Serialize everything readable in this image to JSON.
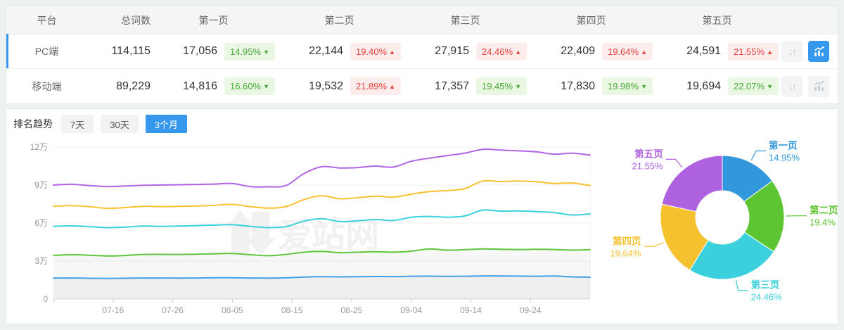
{
  "table": {
    "headers": [
      "平台",
      "总词数",
      "第一页",
      "第二页",
      "第三页",
      "第四页",
      "第五页"
    ],
    "rows": [
      {
        "platform": "PC端",
        "total": "114,115",
        "selected": true,
        "pages": [
          {
            "value": "17,056",
            "pct": "14.95%",
            "trend": "down",
            "tone": "green"
          },
          {
            "value": "22,144",
            "pct": "19.40%",
            "trend": "up",
            "tone": "red"
          },
          {
            "value": "27,915",
            "pct": "24.46%",
            "trend": "up",
            "tone": "red"
          },
          {
            "value": "22,409",
            "pct": "19.64%",
            "trend": "up",
            "tone": "red"
          },
          {
            "value": "24,591",
            "pct": "21.55%",
            "trend": "up",
            "tone": "red"
          }
        ],
        "sort_active": false,
        "chart_active": true
      },
      {
        "platform": "移动端",
        "total": "89,229",
        "selected": false,
        "pages": [
          {
            "value": "14,816",
            "pct": "16.60%",
            "trend": "down",
            "tone": "green"
          },
          {
            "value": "19,532",
            "pct": "21.89%",
            "trend": "up",
            "tone": "red"
          },
          {
            "value": "17,357",
            "pct": "19.45%",
            "trend": "down",
            "tone": "green"
          },
          {
            "value": "17,830",
            "pct": "19.98%",
            "trend": "down",
            "tone": "green"
          },
          {
            "value": "19,694",
            "pct": "22.07%",
            "trend": "down",
            "tone": "green"
          }
        ],
        "sort_active": false,
        "chart_active": false
      }
    ]
  },
  "icons": {
    "up_arrow": "▲",
    "down_arrow": "▼",
    "sort_arrows": "↓↑"
  },
  "trend": {
    "title": "排名趋势",
    "tabs": [
      {
        "label": "7天",
        "active": false
      },
      {
        "label": "30天",
        "active": false
      },
      {
        "label": "3个月",
        "active": true
      }
    ]
  },
  "watermark": {
    "text": "爱站网"
  },
  "colors": {
    "accent_blue": "#3598ec",
    "badge_green_text": "#47ab36",
    "badge_green_bg": "#e9f7e3",
    "badge_red_text": "#e8433e",
    "badge_red_bg": "#fdecec"
  },
  "chart_data": [
    {
      "type": "line",
      "title": "排名趋势 3个月",
      "unit": "万 (cumulative keyword counts by page depth)",
      "sample_step_days": 3,
      "x_ticks": [
        {
          "day": 10,
          "label": "07-16"
        },
        {
          "day": 20,
          "label": "07-26"
        },
        {
          "day": 30,
          "label": "08-05"
        },
        {
          "day": 40,
          "label": "08-15"
        },
        {
          "day": 50,
          "label": "08-25"
        },
        {
          "day": 60,
          "label": "09-04"
        },
        {
          "day": 70,
          "label": "09-14"
        },
        {
          "day": 80,
          "label": "09-24"
        }
      ],
      "xlim_days": [
        0,
        90
      ],
      "ylim": [
        0,
        13
      ],
      "y_ticks": [
        {
          "value": 0,
          "label": "0"
        },
        {
          "value": 3,
          "label": "3万"
        },
        {
          "value": 6,
          "label": "6万"
        },
        {
          "value": 9,
          "label": "9万"
        },
        {
          "value": 12,
          "label": "12万"
        }
      ],
      "series": [
        {
          "name": "第一页",
          "color": "#41a1e8",
          "area": true,
          "values": [
            1.65,
            1.66,
            1.64,
            1.63,
            1.64,
            1.66,
            1.66,
            1.65,
            1.66,
            1.68,
            1.68,
            1.66,
            1.65,
            1.67,
            1.74,
            1.77,
            1.75,
            1.76,
            1.78,
            1.77,
            1.8,
            1.81,
            1.79,
            1.8,
            1.83,
            1.82,
            1.81,
            1.8,
            1.82,
            1.75,
            1.72
          ]
        },
        {
          "name": "第二页",
          "color": "#5ec63c",
          "area": true,
          "values": [
            3.45,
            3.5,
            3.46,
            3.4,
            3.44,
            3.52,
            3.53,
            3.52,
            3.54,
            3.57,
            3.6,
            3.5,
            3.42,
            3.52,
            3.7,
            3.76,
            3.66,
            3.7,
            3.74,
            3.7,
            3.78,
            3.96,
            3.86,
            3.9,
            3.96,
            3.93,
            3.91,
            3.93,
            3.91,
            3.86,
            3.9
          ]
        },
        {
          "name": "第三页",
          "color": "#38d1dc",
          "area": false,
          "values": [
            5.74,
            5.78,
            5.72,
            5.64,
            5.68,
            5.76,
            5.74,
            5.76,
            5.8,
            5.84,
            5.87,
            5.74,
            5.64,
            5.72,
            6.15,
            6.35,
            6.12,
            6.18,
            6.28,
            6.2,
            6.46,
            6.52,
            6.46,
            6.56,
            7.02,
            6.94,
            6.96,
            6.9,
            6.82,
            6.64,
            6.72
          ]
        },
        {
          "name": "第四页",
          "color": "#f9c22e",
          "area": false,
          "values": [
            7.32,
            7.38,
            7.3,
            7.16,
            7.22,
            7.32,
            7.3,
            7.32,
            7.34,
            7.4,
            7.47,
            7.3,
            7.18,
            7.3,
            7.85,
            8.15,
            7.92,
            8.0,
            8.12,
            8.05,
            8.28,
            8.48,
            8.56,
            8.72,
            9.32,
            9.28,
            9.32,
            9.26,
            9.12,
            9.16,
            8.96
          ]
        },
        {
          "name": "第五页",
          "color": "#b164e3",
          "area": false,
          "values": [
            9.0,
            9.06,
            8.96,
            8.88,
            8.92,
            8.98,
            9.0,
            9.02,
            9.05,
            9.08,
            9.12,
            8.88,
            8.86,
            8.96,
            9.9,
            10.45,
            10.35,
            10.38,
            10.5,
            10.42,
            10.88,
            11.12,
            11.32,
            11.52,
            11.82,
            11.76,
            11.7,
            11.62,
            11.44,
            11.52,
            11.36
          ]
        }
      ]
    },
    {
      "type": "pie",
      "subtype": "donut",
      "labels": [
        "第一页",
        "第二页",
        "第三页",
        "第四页",
        "第五页"
      ],
      "values": [
        14.95,
        19.4,
        24.46,
        19.64,
        21.55
      ],
      "display": [
        "14.95%",
        "19.4%",
        "24.46%",
        "19.64%",
        "21.55%"
      ],
      "colors": [
        "#3398db",
        "#5ec532",
        "#3ad1dd",
        "#f6c12f",
        "#af62e0"
      ],
      "start_angle": "top, clockwise"
    }
  ]
}
